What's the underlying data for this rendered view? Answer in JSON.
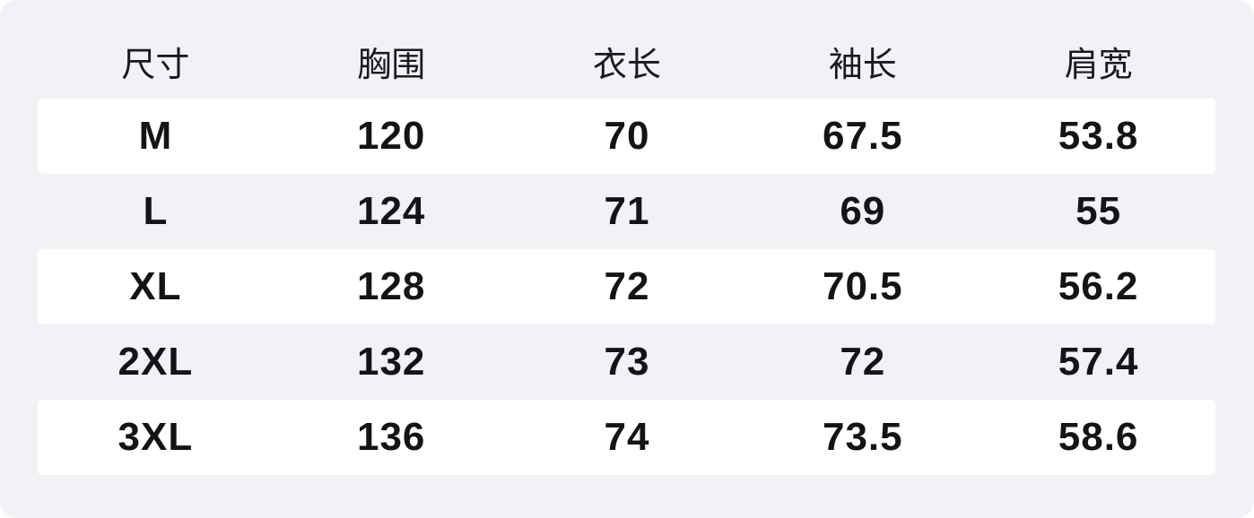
{
  "colors": {
    "page_bg": "#ffffff",
    "panel_bg": "#f2f2f6",
    "stripe_bg": "#ffffff",
    "header_text": "#1a1a1e",
    "cell_text": "#141418"
  },
  "size_chart": {
    "headers": [
      "尺寸",
      "胸围",
      "衣长",
      "袖长",
      "肩宽"
    ],
    "rows": [
      [
        "M",
        "120",
        "70",
        "67.5",
        "53.8"
      ],
      [
        "L",
        "124",
        "71",
        "69",
        "55"
      ],
      [
        "XL",
        "128",
        "72",
        "70.5",
        "56.2"
      ],
      [
        "2XL",
        "132",
        "73",
        "72",
        "57.4"
      ],
      [
        "3XL",
        "136",
        "74",
        "73.5",
        "58.6"
      ]
    ]
  },
  "chart_data": {
    "type": "table",
    "title": "",
    "columns": [
      "尺寸",
      "胸围",
      "衣长",
      "袖长",
      "肩宽"
    ],
    "rows": [
      [
        "M",
        120,
        70,
        67.5,
        53.8
      ],
      [
        "L",
        124,
        71,
        69,
        55
      ],
      [
        "XL",
        128,
        72,
        70.5,
        56.2
      ],
      [
        "2XL",
        132,
        73,
        72,
        57.4
      ],
      [
        "3XL",
        136,
        74,
        73.5,
        58.6
      ]
    ]
  }
}
